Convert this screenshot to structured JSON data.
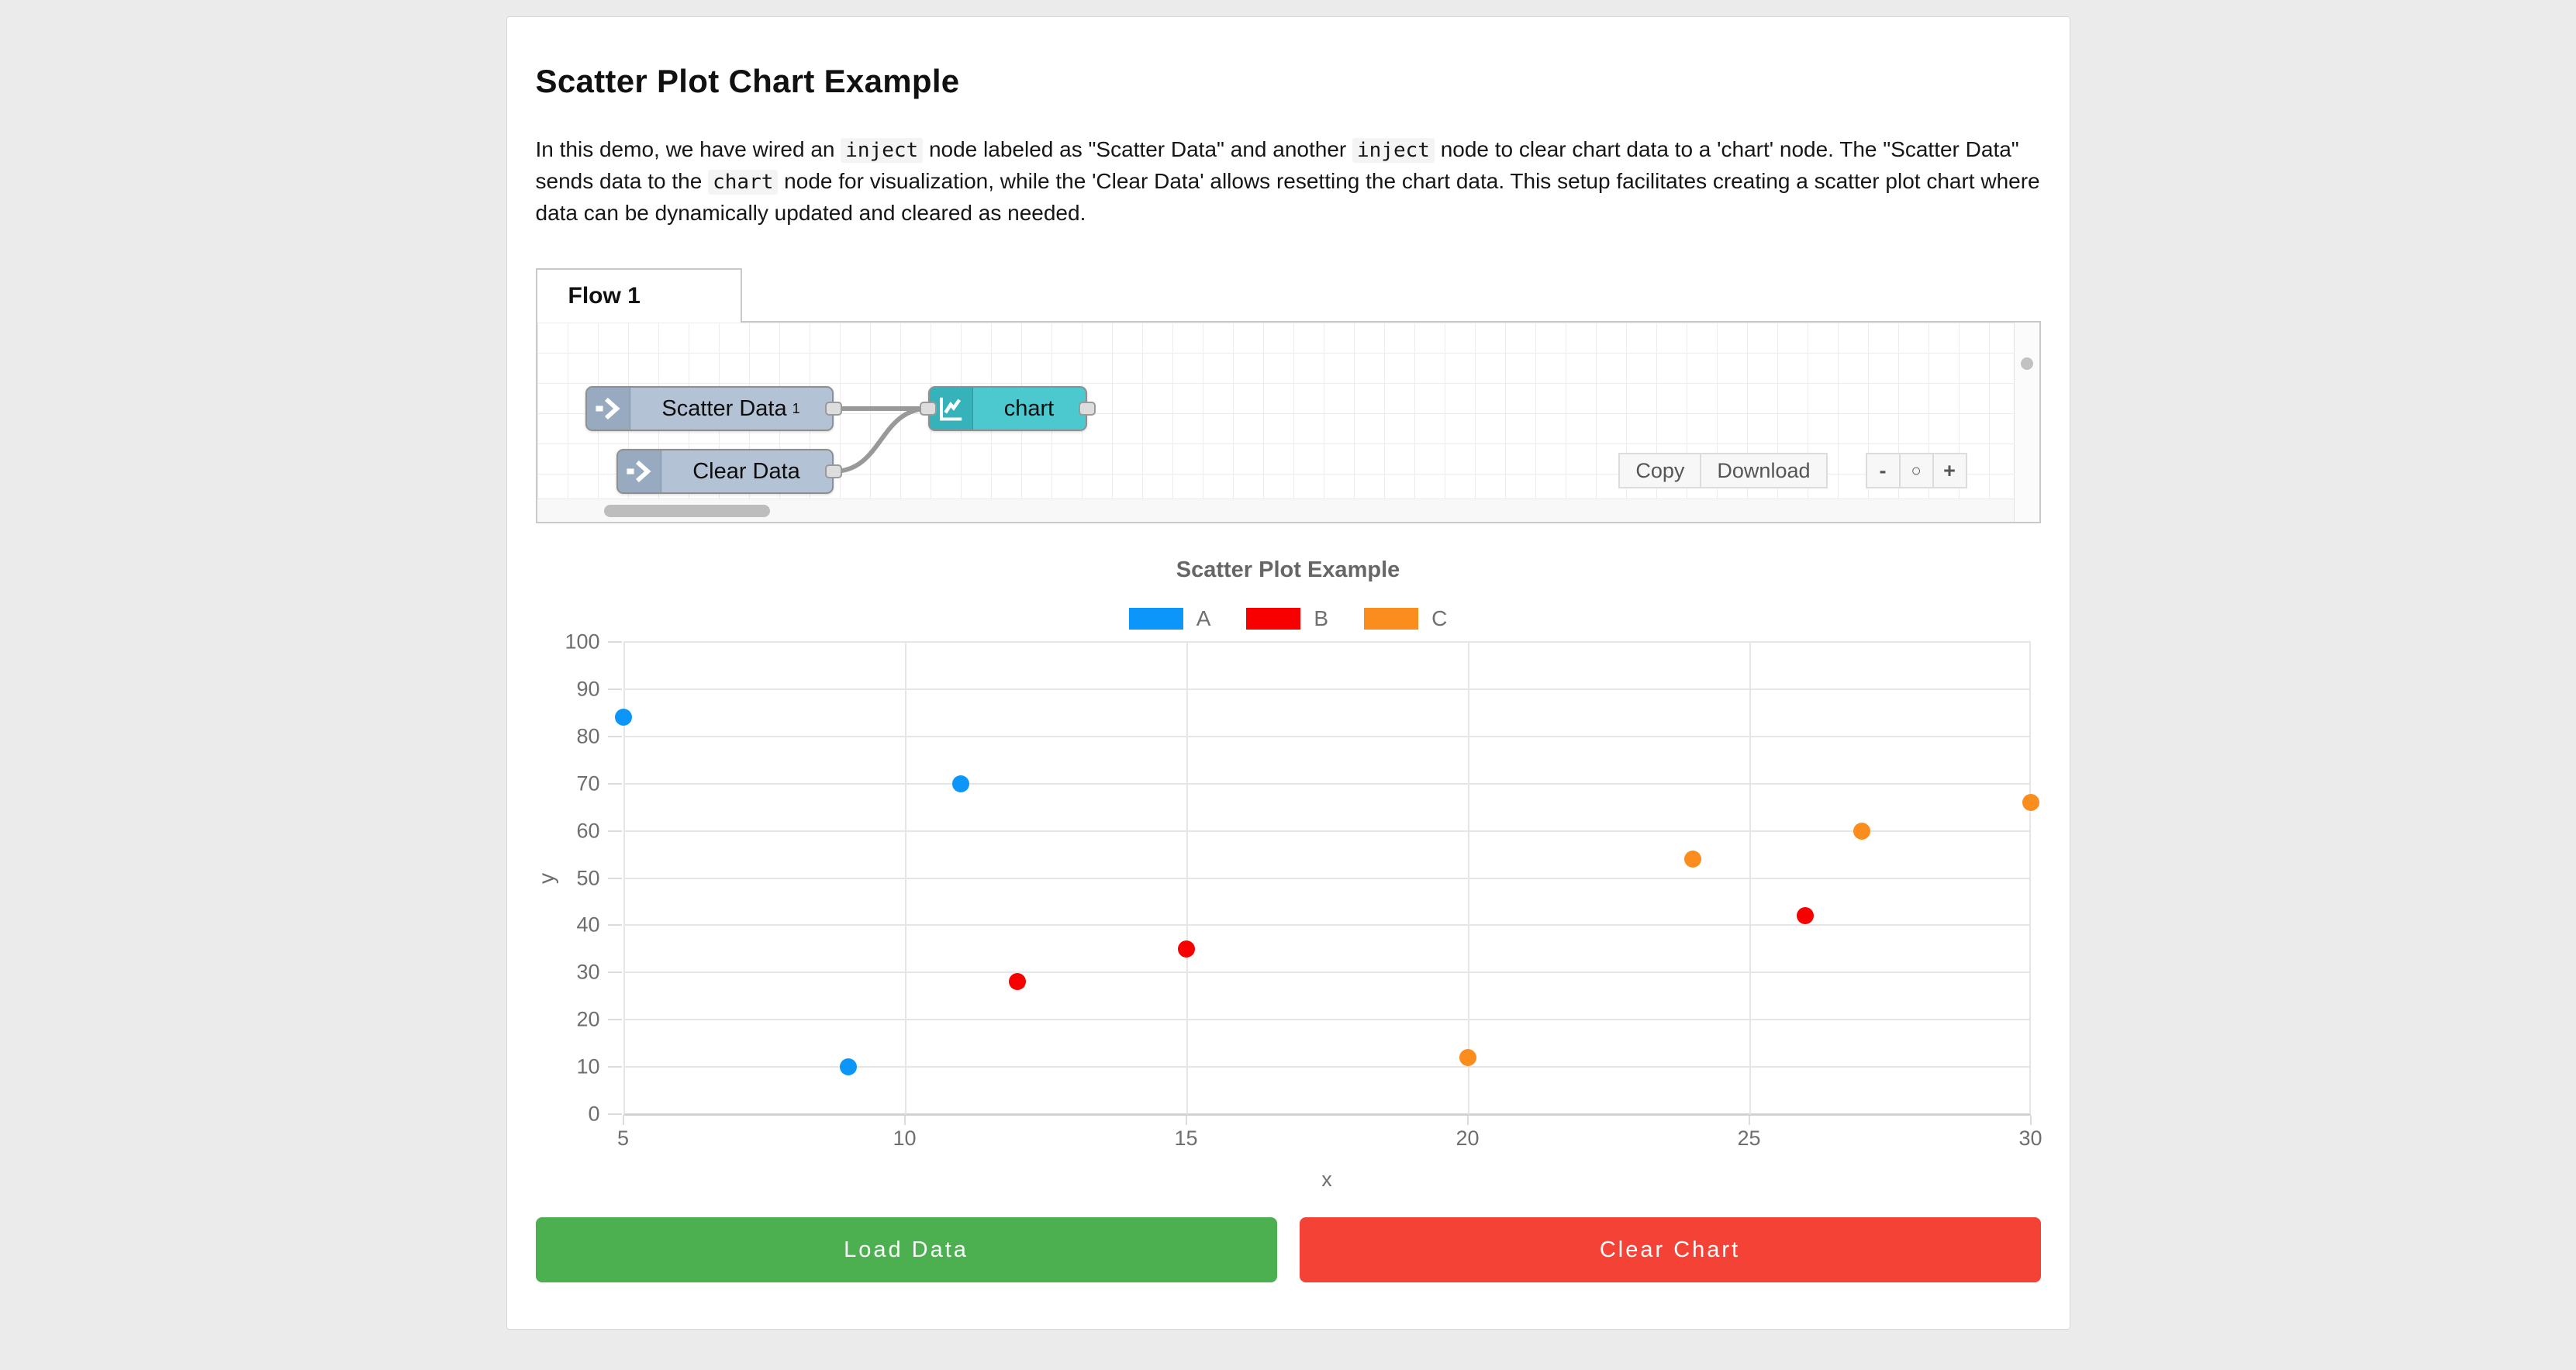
{
  "page": {
    "background": "#ebebeb"
  },
  "header": {
    "title": "Scatter Plot Chart Example"
  },
  "intro": {
    "segments": [
      {
        "type": "text",
        "text": "In this demo, we have wired an "
      },
      {
        "type": "code",
        "text": "inject"
      },
      {
        "type": "text",
        "text": " node labeled as \"Scatter Data\" and another "
      },
      {
        "type": "code",
        "text": "inject"
      },
      {
        "type": "text",
        "text": " node to clear chart data to a 'chart' node. The \"Scatter Data\" sends data to the "
      },
      {
        "type": "code",
        "text": "chart"
      },
      {
        "type": "text",
        "text": " node for visualization, while the 'Clear Data' allows resetting the chart data. This setup facilitates creating a scatter plot chart where data can be dynamically updated and cleared as needed."
      }
    ]
  },
  "flow": {
    "tab_label": "Flow 1",
    "nodes": [
      {
        "label": "Scatter Data",
        "sup": "1",
        "type": "inject"
      },
      {
        "label": "Clear Data",
        "sup": "",
        "type": "inject"
      },
      {
        "label": "chart",
        "sup": "",
        "type": "chart"
      }
    ],
    "node_colors": {
      "inject_body": "#b3c2d4",
      "inject_icon": "#97aabf",
      "chart_body": "#4cc8cf",
      "chart_icon": "#35b2ba"
    },
    "toolbar": {
      "copy_label": "Copy",
      "download_label": "Download",
      "zoom_out_label": "-",
      "zoom_reset_label": "○",
      "zoom_in_label": "+"
    }
  },
  "chart_data": {
    "type": "scatter",
    "title": "Scatter Plot Example",
    "xlabel": "x",
    "ylabel": "y",
    "xlim": [
      5,
      30
    ],
    "ylim": [
      0,
      100
    ],
    "xticks": [
      5,
      10,
      15,
      20,
      25,
      30
    ],
    "yticks": [
      0,
      10,
      20,
      30,
      40,
      50,
      60,
      70,
      80,
      90,
      100
    ],
    "grid": true,
    "legend_position": "top",
    "series": [
      {
        "name": "A",
        "color": "#0d96fa",
        "points": [
          [
            5,
            84
          ],
          [
            9,
            10
          ],
          [
            11,
            70
          ]
        ]
      },
      {
        "name": "B",
        "color": "#f90000",
        "points": [
          [
            12,
            28
          ],
          [
            15,
            35
          ],
          [
            26,
            42
          ]
        ]
      },
      {
        "name": "C",
        "color": "#fb8c1e",
        "points": [
          [
            20,
            12
          ],
          [
            24,
            54
          ],
          [
            27,
            60
          ],
          [
            30,
            66
          ]
        ]
      }
    ]
  },
  "actions": {
    "load_label": "Load Data",
    "load_color": "#4caf50",
    "clear_label": "Clear Chart",
    "clear_color": "#f44336"
  }
}
